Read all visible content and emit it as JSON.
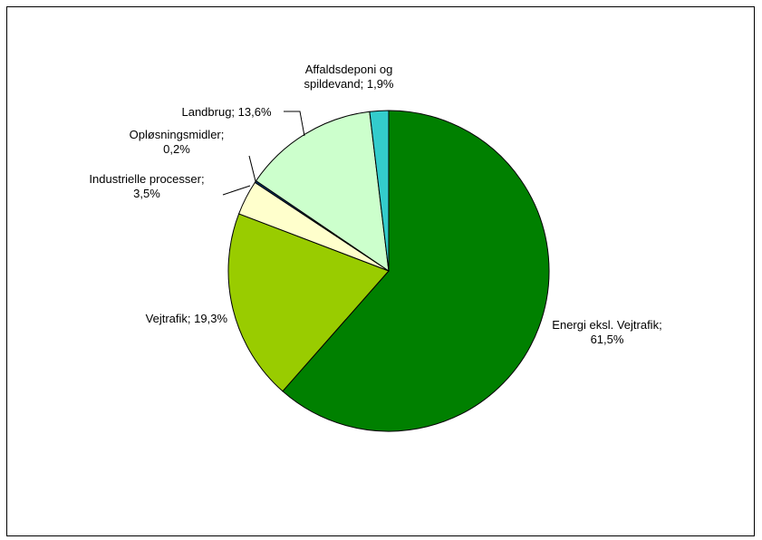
{
  "chart_data": {
    "type": "pie",
    "title": "",
    "start": "12 o'clock",
    "direction": "clockwise",
    "legend": "none",
    "slices": [
      {
        "name": "Energi eksl. Vejtrafik",
        "value": 61.5,
        "value_label": "61,5%",
        "label_lines": [
          "Energi eksl. Vejtrafik;",
          "61,5%"
        ],
        "color": "#008000"
      },
      {
        "name": "Vejtrafik",
        "value": 19.3,
        "value_label": "19,3%",
        "label_lines": [
          "Vejtrafik; 19,3%"
        ],
        "color": "#99CC00"
      },
      {
        "name": "Industrielle processer",
        "value": 3.5,
        "value_label": "3,5%",
        "label_lines": [
          "Industrielle processer;",
          "3,5%"
        ],
        "color": "#FFFFCC"
      },
      {
        "name": "Opløsningsmidler",
        "value": 0.2,
        "value_label": "0,2%",
        "label_lines": [
          "Opløsningsmidler;",
          "0,2%"
        ],
        "color": "#003366"
      },
      {
        "name": "Landbrug",
        "value": 13.6,
        "value_label": "13,6%",
        "label_lines": [
          "Landbrug; 13,6%"
        ],
        "color": "#CCFFCC"
      },
      {
        "name": "Affaldsdeponi og spildevand",
        "value": 1.9,
        "value_label": "1,9%",
        "label_lines": [
          "Affaldsdeponi og",
          "spildevand; 1,9%"
        ],
        "color": "#33CCCC"
      }
    ]
  }
}
